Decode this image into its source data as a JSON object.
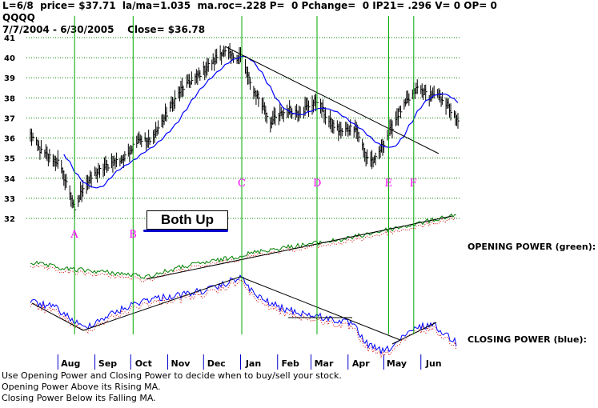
{
  "header": {
    "line1": "L=6/8  price= $37.71  la/ma=1.035  ma.roc=.228 P=  0 Pchange=  0 IP21= .296 V= 0 OP= 0",
    "line2": "QQQQ",
    "line3": "7/7/2004 - 6/30/2005    Close= $36.78"
  },
  "side_labels": {
    "opening_power": "OPENING POWER (green):",
    "closing_power": "CLOSING POWER (blue):"
  },
  "annotation": {
    "text": "Both Up"
  },
  "footer": {
    "line1": "Use Opening Power and Closing Power to decide when to buy/sell your stock.",
    "line2": "Opening Power Above its Rising MA.",
    "line3": "Closing Power Below its Falling MA."
  },
  "colors": {
    "price_bars": "#000000",
    "price_ma": "#0000ff",
    "opening_power": "#008000",
    "closing_power": "#0000ff",
    "power_ma": "#cc0000",
    "gridlines": "#008000",
    "event_lines": "#00aa00",
    "event_labels": "#ff00ff",
    "trendlines": "#000000"
  },
  "chart_data": {
    "type": "line",
    "title": "QQQQ",
    "ylim": [
      32,
      41
    ],
    "yticks": [
      "41",
      "40",
      "39",
      "38",
      "37",
      "36",
      "35",
      "34",
      "33",
      "32"
    ],
    "months": [
      "Aug",
      "Sep",
      "Oct",
      "Nov",
      "Dec",
      "Jan",
      "Feb",
      "Mar",
      "Apr",
      "May",
      "Jun"
    ],
    "events": [
      {
        "label": "A",
        "date": "2004-08-13"
      },
      {
        "label": "B",
        "date": "2004-10-01"
      },
      {
        "label": "C",
        "date": "2004-12-31"
      },
      {
        "label": "D",
        "date": "2005-03-04"
      },
      {
        "label": "E",
        "date": "2005-05-03"
      },
      {
        "label": "F",
        "date": "2005-05-24"
      }
    ],
    "price_anchors": [
      {
        "date": "2004-07-07",
        "close": 36.2
      },
      {
        "date": "2004-07-16",
        "close": 35.3
      },
      {
        "date": "2004-07-30",
        "close": 34.8
      },
      {
        "date": "2004-08-09",
        "close": 33.3
      },
      {
        "date": "2004-08-13",
        "close": 32.3
      },
      {
        "date": "2004-08-20",
        "close": 33.6
      },
      {
        "date": "2004-09-01",
        "close": 34.3
      },
      {
        "date": "2004-09-14",
        "close": 34.8
      },
      {
        "date": "2004-09-24",
        "close": 35.0
      },
      {
        "date": "2004-10-05",
        "close": 36.0
      },
      {
        "date": "2004-10-15",
        "close": 35.8
      },
      {
        "date": "2004-10-29",
        "close": 37.2
      },
      {
        "date": "2004-11-10",
        "close": 38.4
      },
      {
        "date": "2004-11-22",
        "close": 39.0
      },
      {
        "date": "2004-12-03",
        "close": 39.6
      },
      {
        "date": "2004-12-14",
        "close": 40.3
      },
      {
        "date": "2004-12-22",
        "close": 40.1
      },
      {
        "date": "2004-12-31",
        "close": 40.0
      },
      {
        "date": "2005-01-07",
        "close": 38.7
      },
      {
        "date": "2005-01-14",
        "close": 38.0
      },
      {
        "date": "2005-01-24",
        "close": 36.8
      },
      {
        "date": "2005-02-07",
        "close": 37.4
      },
      {
        "date": "2005-02-18",
        "close": 37.3
      },
      {
        "date": "2005-03-04",
        "close": 37.9
      },
      {
        "date": "2005-03-14",
        "close": 36.8
      },
      {
        "date": "2005-03-24",
        "close": 36.3
      },
      {
        "date": "2005-04-05",
        "close": 36.6
      },
      {
        "date": "2005-04-14",
        "close": 35.1
      },
      {
        "date": "2005-04-21",
        "close": 34.8
      },
      {
        "date": "2005-04-29",
        "close": 35.8
      },
      {
        "date": "2005-05-06",
        "close": 36.6
      },
      {
        "date": "2005-05-12",
        "close": 37.3
      },
      {
        "date": "2005-05-20",
        "close": 37.9
      },
      {
        "date": "2005-05-27",
        "close": 38.5
      },
      {
        "date": "2005-06-06",
        "close": 38.1
      },
      {
        "date": "2005-06-17",
        "close": 38.0
      },
      {
        "date": "2005-06-30",
        "close": 36.78
      }
    ]
  }
}
